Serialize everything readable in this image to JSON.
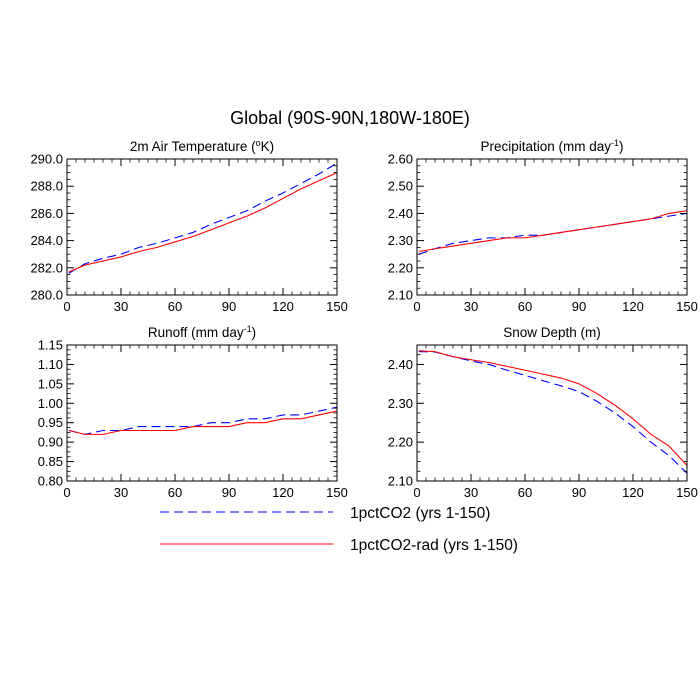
{
  "figure": {
    "title": "Global (90S-90N,180W-180E)"
  },
  "legend": [
    {
      "label": "1pctCO2 (yrs 1-150)",
      "color": "#0000ff",
      "dash": "dashed"
    },
    {
      "label": "1pctCO2-rad (yrs 1-150)",
      "color": "#ff0000",
      "dash": "solid"
    }
  ],
  "colors": {
    "series_dashed": "#0000ff",
    "series_solid": "#ff0000",
    "axes": "#000000"
  },
  "chart_data": [
    {
      "type": "line",
      "title_base": "2m Air Temperature (",
      "title_sup": "o",
      "title_tail": "K)",
      "xlim": [
        0,
        150
      ],
      "ylim": [
        280,
        290
      ],
      "xticks": [
        0,
        30,
        60,
        90,
        120,
        150
      ],
      "xticklabels": [
        "0",
        "30",
        "60",
        "90",
        "120",
        "150"
      ],
      "yticks": [
        280,
        282,
        284,
        286,
        288,
        290
      ],
      "yticklabels": [
        "280.0",
        "282.0",
        "284.0",
        "286.0",
        "288.0",
        "290.0"
      ],
      "series": [
        {
          "name": "1pctCO2 (yrs 1-150)",
          "x": [
            1,
            10,
            20,
            30,
            40,
            50,
            60,
            70,
            80,
            90,
            100,
            110,
            120,
            130,
            140,
            150
          ],
          "y": [
            281.6,
            282.3,
            282.7,
            283.0,
            283.5,
            283.8,
            284.2,
            284.6,
            285.2,
            285.7,
            286.2,
            286.9,
            287.5,
            288.2,
            288.9,
            289.7
          ]
        },
        {
          "name": "1pctCO2-rad (yrs 1-150)",
          "x": [
            1,
            10,
            20,
            30,
            40,
            50,
            60,
            70,
            80,
            90,
            100,
            110,
            120,
            130,
            140,
            150
          ],
          "y": [
            281.7,
            282.2,
            282.5,
            282.8,
            283.2,
            283.5,
            283.9,
            284.3,
            284.8,
            285.3,
            285.8,
            286.4,
            287.1,
            287.8,
            288.4,
            289.0
          ]
        }
      ]
    },
    {
      "type": "line",
      "title_base": "Precipitation (mm day",
      "title_sup": "-1",
      "title_tail": ")",
      "xlim": [
        0,
        150
      ],
      "ylim": [
        2.1,
        2.6
      ],
      "xticks": [
        0,
        30,
        60,
        90,
        120,
        150
      ],
      "xticklabels": [
        "0",
        "30",
        "60",
        "90",
        "120",
        "150"
      ],
      "yticks": [
        2.1,
        2.2,
        2.3,
        2.4,
        2.5,
        2.6
      ],
      "yticklabels": [
        "2.10",
        "2.20",
        "2.30",
        "2.40",
        "2.50",
        "2.60"
      ],
      "series": [
        {
          "name": "1pctCO2 (yrs 1-150)",
          "x": [
            1,
            10,
            20,
            30,
            40,
            50,
            60,
            70,
            80,
            90,
            100,
            110,
            120,
            130,
            140,
            150
          ],
          "y": [
            2.25,
            2.27,
            2.29,
            2.3,
            2.31,
            2.31,
            2.32,
            2.32,
            2.33,
            2.34,
            2.35,
            2.36,
            2.37,
            2.38,
            2.39,
            2.4
          ]
        },
        {
          "name": "1pctCO2-rad (yrs 1-150)",
          "x": [
            1,
            10,
            20,
            30,
            40,
            50,
            60,
            70,
            80,
            90,
            100,
            110,
            120,
            130,
            140,
            150
          ],
          "y": [
            2.26,
            2.27,
            2.28,
            2.29,
            2.3,
            2.31,
            2.31,
            2.32,
            2.33,
            2.34,
            2.35,
            2.36,
            2.37,
            2.38,
            2.4,
            2.41
          ]
        }
      ]
    },
    {
      "type": "line",
      "title_base": "Runoff (mm day",
      "title_sup": "-1",
      "title_tail": ")",
      "xlim": [
        0,
        150
      ],
      "ylim": [
        0.8,
        1.15
      ],
      "xticks": [
        0,
        30,
        60,
        90,
        120,
        150
      ],
      "xticklabels": [
        "0",
        "30",
        "60",
        "90",
        "120",
        "150"
      ],
      "yticks": [
        0.8,
        0.85,
        0.9,
        0.95,
        1.0,
        1.05,
        1.1,
        1.15
      ],
      "yticklabels": [
        "0.80",
        "0.85",
        "0.90",
        "0.95",
        "1.00",
        "1.05",
        "1.10",
        "1.15"
      ],
      "series": [
        {
          "name": "1pctCO2 (yrs 1-150)",
          "x": [
            1,
            10,
            20,
            30,
            40,
            50,
            60,
            70,
            80,
            90,
            100,
            110,
            120,
            130,
            140,
            150
          ],
          "y": [
            0.93,
            0.92,
            0.93,
            0.93,
            0.94,
            0.94,
            0.94,
            0.94,
            0.95,
            0.95,
            0.96,
            0.96,
            0.97,
            0.97,
            0.98,
            0.99
          ]
        },
        {
          "name": "1pctCO2-rad (yrs 1-150)",
          "x": [
            1,
            10,
            20,
            30,
            40,
            50,
            60,
            70,
            80,
            90,
            100,
            110,
            120,
            130,
            140,
            150
          ],
          "y": [
            0.93,
            0.92,
            0.92,
            0.93,
            0.93,
            0.93,
            0.93,
            0.94,
            0.94,
            0.94,
            0.95,
            0.95,
            0.96,
            0.96,
            0.97,
            0.98
          ]
        }
      ]
    },
    {
      "type": "line",
      "title_base": "Snow Depth (m)",
      "title_sup": "",
      "title_tail": "",
      "xlim": [
        0,
        150
      ],
      "ylim": [
        2.1,
        2.45
      ],
      "xticks": [
        0,
        30,
        60,
        90,
        120,
        150
      ],
      "xticklabels": [
        "0",
        "30",
        "60",
        "90",
        "120",
        "150"
      ],
      "yticks": [
        2.1,
        2.2,
        2.3,
        2.4
      ],
      "yticklabels": [
        "2.10",
        "2.20",
        "2.30",
        "2.40"
      ],
      "series": [
        {
          "name": "1pctCO2 (yrs 1-150)",
          "x": [
            1,
            10,
            20,
            30,
            40,
            50,
            60,
            70,
            80,
            90,
            100,
            110,
            120,
            130,
            140,
            150
          ],
          "y": [
            2.433,
            2.432,
            2.42,
            2.409,
            2.4,
            2.385,
            2.372,
            2.358,
            2.345,
            2.33,
            2.305,
            2.275,
            2.24,
            2.2,
            2.165,
            2.12
          ]
        },
        {
          "name": "1pctCO2-rad (yrs 1-150)",
          "x": [
            1,
            10,
            20,
            30,
            40,
            50,
            60,
            70,
            80,
            90,
            100,
            110,
            120,
            130,
            140,
            150
          ],
          "y": [
            2.435,
            2.433,
            2.42,
            2.412,
            2.405,
            2.395,
            2.385,
            2.375,
            2.365,
            2.35,
            2.325,
            2.295,
            2.26,
            2.22,
            2.19,
            2.14
          ]
        }
      ]
    }
  ]
}
